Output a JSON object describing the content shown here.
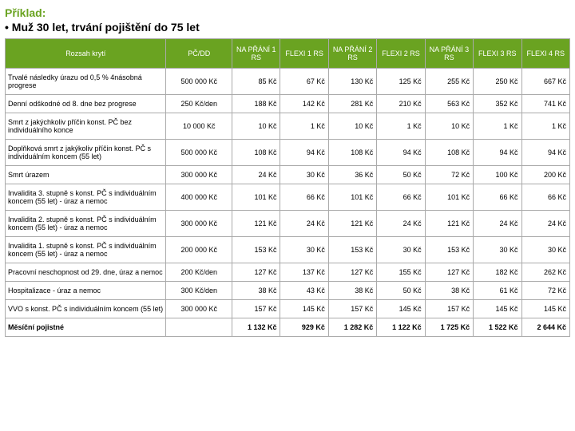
{
  "title": "Příklad:",
  "subtitle_bullet": "• ",
  "subtitle": "Muž 30 let, trvání pojištění do 75 let",
  "headers": {
    "rozsah": "Rozsah krytí",
    "pcdd": "PČ/DD",
    "cols": [
      "NA PŘÁNÍ 1 RS",
      "FLEXI 1 RS",
      "NA PŘÁNÍ 2 RS",
      "FLEXI 2 RS",
      "NA PŘÁNÍ 3 RS",
      "FLEXI 3 RS",
      "FLEXI 4 RS"
    ]
  },
  "rows": [
    {
      "rozsah": "Trvalé následky úrazu od 0,5 % 4násobná progrese",
      "pcdd": "500 000 Kč",
      "vals": [
        "85 Kč",
        "67 Kč",
        "130 Kč",
        "125 Kč",
        "255 Kč",
        "250 Kč",
        "667 Kč"
      ]
    },
    {
      "rozsah": "Denní odškodné od 8. dne bez progrese",
      "pcdd": "250 Kč/den",
      "vals": [
        "188 Kč",
        "142 Kč",
        "281 Kč",
        "210 Kč",
        "563 Kč",
        "352 Kč",
        "741 Kč"
      ]
    },
    {
      "rozsah": "Smrt z jakýchkoliv příčin konst. PČ bez individuálního konce",
      "pcdd": "10 000 Kč",
      "vals": [
        "10 Kč",
        "1 Kč",
        "10 Kč",
        "1 Kč",
        "10 Kč",
        "1 Kč",
        "1 Kč"
      ]
    },
    {
      "rozsah": "Doplňková smrt z jakýkoliv příčin konst. PČ s individuálním koncem (55 let)",
      "pcdd": "500 000 Kč",
      "vals": [
        "108 Kč",
        "94 Kč",
        "108 Kč",
        "94 Kč",
        "108 Kč",
        "94 Kč",
        "94 Kč"
      ]
    },
    {
      "rozsah": "Smrt úrazem",
      "pcdd": "300 000 Kč",
      "vals": [
        "24 Kč",
        "30 Kč",
        "36 Kč",
        "50 Kč",
        "72 Kč",
        "100 Kč",
        "200 Kč"
      ]
    },
    {
      "rozsah": "Invalidita 3. stupně s konst. PČ s individuálním koncem (55 let) - úraz a nemoc",
      "pcdd": "400 000 Kč",
      "vals": [
        "101 Kč",
        "66 Kč",
        "101 Kč",
        "66 Kč",
        "101 Kč",
        "66 Kč",
        "66 Kč"
      ]
    },
    {
      "rozsah": "Invalidita 2. stupně s konst. PČ s individuálním koncem (55 let) - úraz a nemoc",
      "pcdd": "300 000 Kč",
      "vals": [
        "121 Kč",
        "24 Kč",
        "121 Kč",
        "24 Kč",
        "121 Kč",
        "24 Kč",
        "24 Kč"
      ]
    },
    {
      "rozsah": "Invalidita 1. stupně s konst. PČ s individuálním koncem (55 let) - úraz a nemoc",
      "pcdd": "200 000 Kč",
      "vals": [
        "153 Kč",
        "30 Kč",
        "153 Kč",
        "30 Kč",
        "153 Kč",
        "30 Kč",
        "30 Kč"
      ]
    },
    {
      "rozsah": "Pracovní neschopnost od 29. dne, úraz a nemoc",
      "pcdd": "200 Kč/den",
      "vals": [
        "127 Kč",
        "137 Kč",
        "127 Kč",
        "155 Kč",
        "127 Kč",
        "182 Kč",
        "262 Kč"
      ]
    },
    {
      "rozsah": "Hospitalizace - úraz a nemoc",
      "pcdd": "300 Kč/den",
      "vals": [
        "38 Kč",
        "43 Kč",
        "38 Kč",
        "50 Kč",
        "38 Kč",
        "61 Kč",
        "72 Kč"
      ]
    },
    {
      "rozsah": "VVO s konst. PČ s individuálním koncem (55 let)",
      "pcdd": "300 000 Kč",
      "vals": [
        "157 Kč",
        "145 Kč",
        "157 Kč",
        "145 Kč",
        "157 Kč",
        "145 Kč",
        "145 Kč"
      ]
    }
  ],
  "monthly": {
    "label": "Měsíční pojistné",
    "vals": [
      "1 132 Kč",
      "929 Kč",
      "1 282 Kč",
      "1 122 Kč",
      "1 725 Kč",
      "1 522 Kč",
      "2 644 Kč"
    ]
  },
  "colors": {
    "header_bg": "#6aa321",
    "header_fg": "#ffffff",
    "border": "#aaaaaa",
    "title_green": "#6aa321"
  }
}
